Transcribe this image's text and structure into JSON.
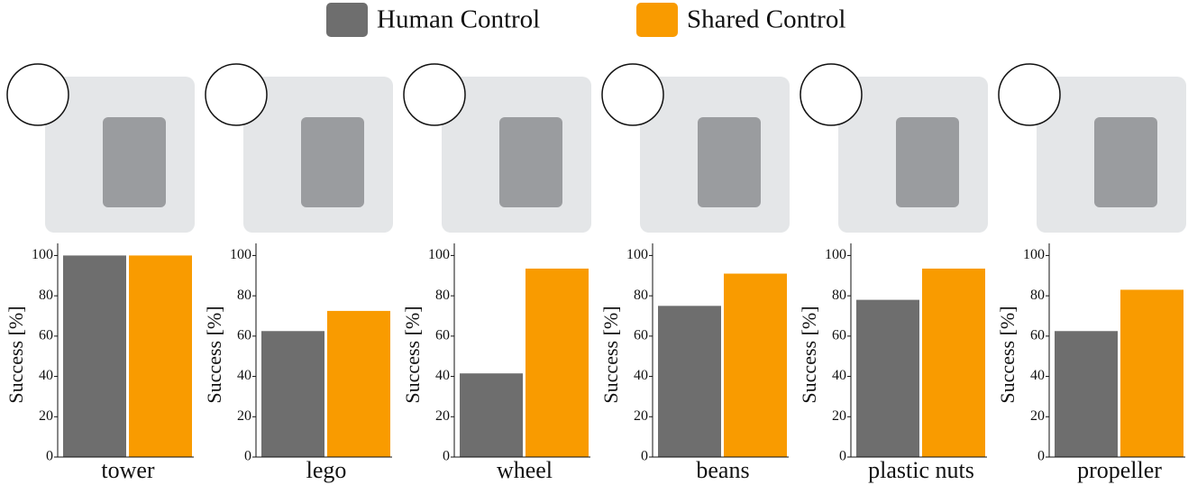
{
  "legend": {
    "series": [
      {
        "name": "Human Control",
        "color": "#6e6e6e"
      },
      {
        "name": "Shared Control",
        "color": "#f99b00"
      }
    ]
  },
  "chart_data": [
    {
      "type": "bar",
      "xlabel": "tower",
      "ylabel": "Success [%]",
      "values": [
        100,
        100
      ],
      "ylim": [
        0,
        106
      ],
      "yticks": [
        0,
        20,
        40,
        60,
        80,
        100
      ]
    },
    {
      "type": "bar",
      "xlabel": "lego",
      "ylabel": "Success [%]",
      "values": [
        62.5,
        72.5
      ],
      "ylim": [
        0,
        106
      ],
      "yticks": [
        0,
        20,
        40,
        60,
        80,
        100
      ]
    },
    {
      "type": "bar",
      "xlabel": "wheel",
      "ylabel": "Success [%]",
      "values": [
        41.5,
        93.5
      ],
      "ylim": [
        0,
        106
      ],
      "yticks": [
        0,
        20,
        40,
        60,
        80,
        100
      ]
    },
    {
      "type": "bar",
      "xlabel": "beans",
      "ylabel": "Success [%]",
      "values": [
        75,
        91
      ],
      "ylim": [
        0,
        106
      ],
      "yticks": [
        0,
        20,
        40,
        60,
        80,
        100
      ]
    },
    {
      "type": "bar",
      "xlabel": "plastic nuts",
      "ylabel": "Success [%]",
      "values": [
        78,
        93.5
      ],
      "ylim": [
        0,
        106
      ],
      "yticks": [
        0,
        20,
        40,
        60,
        80,
        100
      ]
    },
    {
      "type": "bar",
      "xlabel": "propeller",
      "ylabel": "Success [%]",
      "values": [
        62.5,
        83
      ],
      "ylim": [
        0,
        106
      ],
      "yticks": [
        0,
        20,
        40,
        60,
        80,
        100
      ]
    }
  ]
}
